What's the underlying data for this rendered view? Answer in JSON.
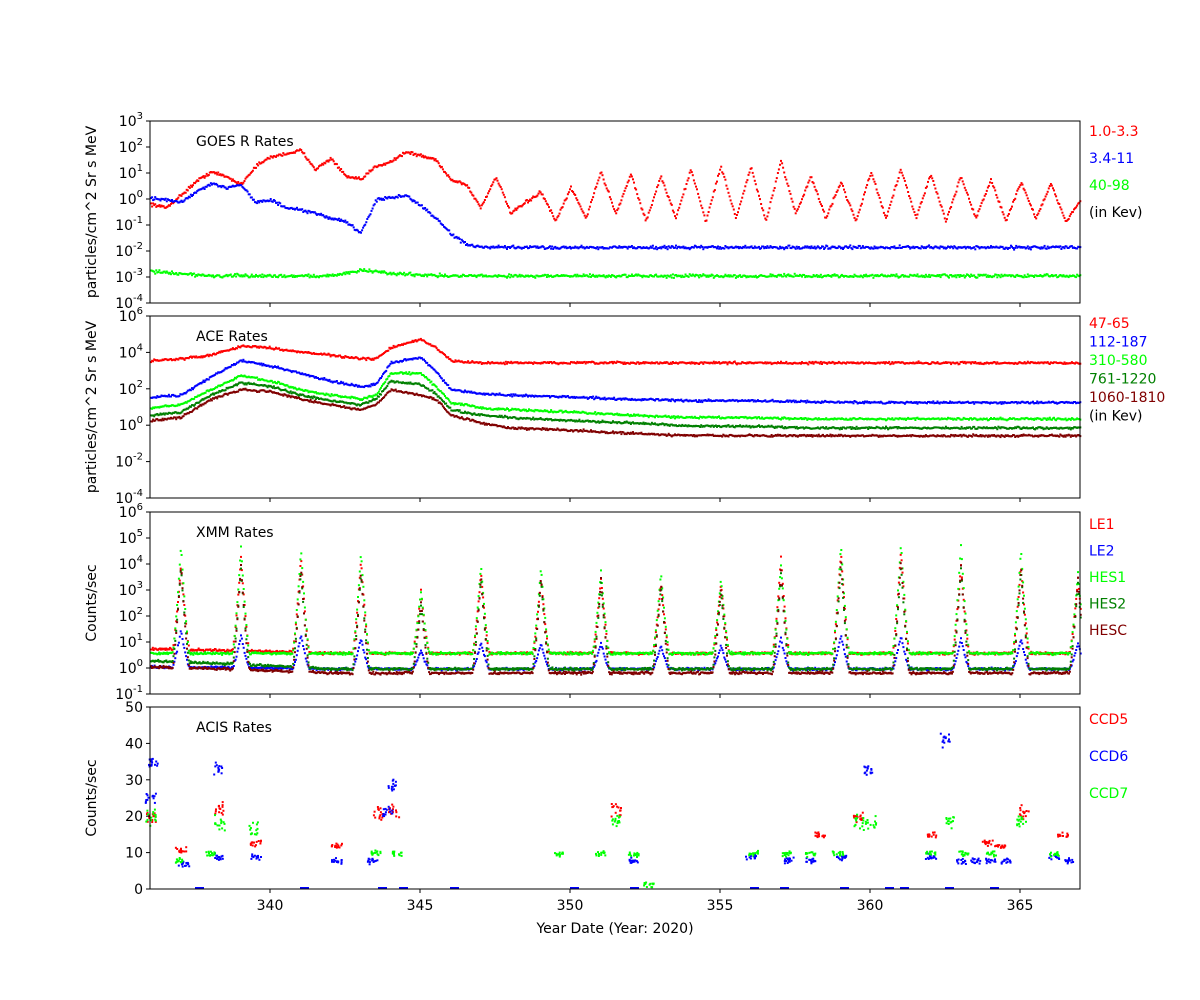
{
  "chart_data": [
    {
      "type": "scatter",
      "title": "GOES R Rates",
      "ylabel": "particles/cm^2 Sr s MeV",
      "yscale": "log",
      "ylim": [
        0.0001,
        1000
      ],
      "xlim": [
        336,
        367
      ],
      "y_tick_labels": [
        {
          "value": 0.0001,
          "base": "10",
          "exp": "-4"
        },
        {
          "value": 0.001,
          "base": "10",
          "exp": "-3"
        },
        {
          "value": 0.01,
          "base": "10",
          "exp": "-2"
        },
        {
          "value": 0.1,
          "base": "10",
          "exp": "-1"
        },
        {
          "value": 1,
          "base": "10",
          "exp": "0"
        },
        {
          "value": 10,
          "base": "10",
          "exp": "1"
        },
        {
          "value": 100,
          "base": "10",
          "exp": "2"
        },
        {
          "value": 1000,
          "base": "10",
          "exp": "3"
        }
      ],
      "legend": [
        "1.0-3.3",
        "3.4-11",
        "40-98",
        "(in Kev)"
      ],
      "series": [
        {
          "name": "1.0-3.3",
          "color": "#ff0000",
          "x": [
            336.0,
            336.5,
            337.0,
            337.5,
            338.0,
            338.5,
            339.0,
            339.5,
            340.0,
            340.5,
            341.0,
            341.5,
            342.0,
            342.5,
            343.0,
            343.5,
            344.0,
            344.5,
            345.0,
            345.5,
            346.0,
            346.5,
            347.0,
            347.5,
            348.0,
            348.5,
            349.0,
            349.5,
            350.0,
            350.5,
            351.0,
            351.5,
            352.0,
            352.5,
            353.0,
            353.5,
            354.0,
            354.5,
            355.0,
            355.5,
            356.0,
            356.5,
            357.0,
            357.5,
            358.0,
            358.5,
            359.0,
            359.5,
            360.0,
            360.5,
            361.0,
            361.5,
            362.0,
            362.5,
            363.0,
            363.5,
            364.0,
            364.5,
            365.0,
            365.5,
            366.0,
            366.5,
            367.0
          ],
          "y": [
            0.7,
            0.5,
            1.5,
            5,
            12,
            8,
            4,
            20,
            45,
            60,
            80,
            15,
            40,
            8,
            6,
            20,
            30,
            70,
            50,
            35,
            6,
            4,
            0.5,
            8,
            0.3,
            0.8,
            2,
            0.15,
            3,
            0.2,
            12,
            0.3,
            10,
            0.15,
            8,
            0.2,
            15,
            0.15,
            20,
            0.2,
            18,
            0.15,
            30,
            0.3,
            8,
            0.2,
            5,
            0.15,
            12,
            0.2,
            15,
            0.2,
            10,
            0.15,
            8,
            0.2,
            6,
            0.15,
            5,
            0.2,
            4,
            0.15,
            1
          ]
        },
        {
          "name": "3.4-11",
          "color": "#0000ff",
          "x": [
            336.0,
            336.5,
            337.0,
            337.5,
            338.0,
            338.5,
            339.0,
            339.5,
            340.0,
            340.5,
            341.0,
            341.5,
            342.0,
            342.5,
            343.0,
            343.5,
            344.0,
            344.5,
            345.0,
            345.5,
            346.0,
            346.5,
            347.0,
            348.0,
            350.0,
            352.0,
            354.0,
            356.0,
            358.0,
            360.0,
            362.0,
            364.0,
            366.0,
            367.0
          ],
          "y": [
            1.2,
            1,
            0.8,
            2,
            4,
            3,
            4,
            0.8,
            1,
            0.5,
            0.4,
            0.3,
            0.2,
            0.15,
            0.05,
            1,
            1.2,
            1.5,
            0.6,
            0.2,
            0.05,
            0.02,
            0.015,
            0.015,
            0.015,
            0.015,
            0.015,
            0.015,
            0.015,
            0.015,
            0.015,
            0.015,
            0.015,
            0.015
          ]
        },
        {
          "name": "40-98",
          "color": "#00ff00",
          "x": [
            336.0,
            338.0,
            340.0,
            342.0,
            343.0,
            344.0,
            346.0,
            348.0,
            350.0,
            352.0,
            354.0,
            356.0,
            358.0,
            360.0,
            362.0,
            364.0,
            366.0,
            367.0
          ],
          "y": [
            0.0018,
            0.0012,
            0.0012,
            0.0012,
            0.002,
            0.0015,
            0.0012,
            0.0012,
            0.0012,
            0.0012,
            0.0012,
            0.0012,
            0.0012,
            0.0012,
            0.0012,
            0.0012,
            0.0012,
            0.0012
          ]
        }
      ]
    },
    {
      "type": "scatter",
      "title": "ACE Rates",
      "ylabel": "particles/cm^2 Sr s MeV",
      "yscale": "log",
      "ylim": [
        0.0001,
        1000000
      ],
      "xlim": [
        336,
        367
      ],
      "y_tick_labels": [
        {
          "value": 0.0001,
          "base": "10",
          "exp": "-4"
        },
        {
          "value": 0.01,
          "base": "10",
          "exp": "-2"
        },
        {
          "value": 1,
          "base": "10",
          "exp": "0"
        },
        {
          "value": 100,
          "base": "10",
          "exp": "2"
        },
        {
          "value": 10000,
          "base": "10",
          "exp": "4"
        },
        {
          "value": 1000000,
          "base": "10",
          "exp": "6"
        }
      ],
      "legend": [
        "47-65",
        "112-187",
        "310-580",
        "761-1220",
        "1060-1810",
        "(in Kev)"
      ],
      "series": [
        {
          "name": "47-65",
          "color": "#ff0000",
          "x": [
            336.0,
            337.0,
            338.0,
            339.0,
            340.0,
            341.0,
            342.0,
            343.0,
            343.5,
            344.0,
            345.0,
            345.5,
            346.0,
            347.0,
            348.0,
            350.0,
            352.0,
            354.0,
            356.0,
            358.0,
            360.0,
            362.0,
            364.0,
            366.0,
            367.0
          ],
          "y": [
            4000,
            5000,
            8000,
            25000,
            20000,
            12000,
            8000,
            5000,
            5000,
            20000,
            60000,
            20000,
            4000,
            3000,
            3000,
            3000,
            3000,
            3000,
            3000,
            3000,
            3000,
            3000,
            3000,
            3000,
            3000
          ]
        },
        {
          "name": "112-187",
          "color": "#0000ff",
          "x": [
            336.0,
            337.0,
            338.0,
            339.0,
            340.0,
            341.0,
            342.0,
            343.0,
            343.5,
            344.0,
            345.0,
            345.5,
            346.0,
            347.0,
            348.0,
            350.0,
            352.0,
            354.0,
            356.0,
            358.0,
            360.0,
            362.0,
            364.0,
            366.0,
            367.0
          ],
          "y": [
            40,
            50,
            500,
            4000,
            2000,
            800,
            300,
            150,
            200,
            3000,
            6000,
            1000,
            100,
            60,
            50,
            40,
            30,
            25,
            25,
            22,
            20,
            20,
            20,
            20,
            20
          ]
        },
        {
          "name": "310-580",
          "color": "#00ff00",
          "x": [
            336.0,
            337.0,
            338.0,
            339.0,
            340.0,
            341.0,
            342.0,
            343.0,
            343.5,
            344.0,
            345.0,
            345.5,
            346.0,
            347.0,
            348.0,
            350.0,
            352.0,
            354.0,
            356.0,
            358.0,
            360.0,
            362.0,
            364.0,
            366.0,
            367.0
          ],
          "y": [
            10,
            15,
            100,
            600,
            300,
            100,
            50,
            30,
            50,
            800,
            800,
            150,
            20,
            10,
            8,
            6,
            4,
            3,
            3,
            2.5,
            2.5,
            2.5,
            2.5,
            2.5,
            2.5
          ]
        },
        {
          "name": "761-1220",
          "color": "#008000",
          "x": [
            336.0,
            337.0,
            338.0,
            339.0,
            340.0,
            341.0,
            342.0,
            343.0,
            343.5,
            344.0,
            345.0,
            345.5,
            346.0,
            347.0,
            348.0,
            350.0,
            352.0,
            354.0,
            356.0,
            358.0,
            360.0,
            362.0,
            364.0,
            366.0,
            367.0
          ],
          "y": [
            4,
            6,
            50,
            250,
            150,
            50,
            25,
            15,
            30,
            300,
            200,
            60,
            8,
            4,
            3,
            2,
            1.5,
            1,
            1,
            0.8,
            0.8,
            0.8,
            0.8,
            0.8,
            0.8
          ]
        },
        {
          "name": "1060-1810",
          "color": "#800000",
          "x": [
            336.0,
            337.0,
            338.0,
            339.0,
            340.0,
            341.0,
            342.0,
            343.0,
            343.5,
            344.0,
            345.0,
            345.5,
            346.0,
            347.0,
            348.0,
            350.0,
            352.0,
            354.0,
            356.0,
            358.0,
            360.0,
            362.0,
            364.0,
            366.0,
            367.0
          ],
          "y": [
            2,
            3,
            30,
            100,
            80,
            30,
            15,
            8,
            15,
            100,
            50,
            30,
            4,
            1.5,
            0.8,
            0.6,
            0.4,
            0.3,
            0.3,
            0.3,
            0.3,
            0.3,
            0.3,
            0.3,
            0.3
          ]
        }
      ]
    },
    {
      "type": "scatter",
      "title": "XMM Rates",
      "ylabel": "Counts/sec",
      "yscale": "log",
      "ylim": [
        0.1,
        1000000
      ],
      "xlim": [
        336,
        367
      ],
      "y_tick_labels": [
        {
          "value": 0.1,
          "base": "10",
          "exp": "-1"
        },
        {
          "value": 1,
          "base": "10",
          "exp": "0"
        },
        {
          "value": 10,
          "base": "10",
          "exp": "1"
        },
        {
          "value": 100,
          "base": "10",
          "exp": "2"
        },
        {
          "value": 1000,
          "base": "10",
          "exp": "3"
        },
        {
          "value": 10000,
          "base": "10",
          "exp": "4"
        },
        {
          "value": 100000,
          "base": "10",
          "exp": "5"
        },
        {
          "value": 1000000,
          "base": "10",
          "exp": "6"
        }
      ],
      "legend": [
        "LE1",
        "LE2",
        "HES1",
        "HES2",
        "HESC"
      ],
      "peak_days": [
        337.0,
        339.0,
        341.0,
        343.0,
        345.0,
        347.0,
        349.0,
        351.0,
        353.0,
        355.0,
        357.0,
        359.0,
        361.0,
        363.0,
        365.0,
        366.9
      ],
      "series": [
        {
          "name": "LE1",
          "color": "#ff0000",
          "baseline": [
            6,
            4
          ],
          "peak": [
            10000,
            20000,
            20000,
            15000,
            1000,
            5000,
            3000,
            3000,
            2000,
            2000,
            20000,
            30000,
            40000,
            10000,
            10000,
            3000
          ]
        },
        {
          "name": "LE2",
          "color": "#0000ff",
          "baseline": [
            1.2,
            1
          ],
          "peak": [
            30,
            20,
            20,
            15,
            5,
            10,
            10,
            10,
            8,
            8,
            15,
            20,
            20,
            15,
            15,
            10
          ]
        },
        {
          "name": "HES1",
          "color": "#00ff00",
          "baseline": [
            4,
            4
          ],
          "peak": [
            60000,
            50000,
            40000,
            30000,
            1000,
            10000,
            8000,
            6000,
            5000,
            3000,
            10000,
            60000,
            70000,
            60000,
            40000,
            5000
          ]
        },
        {
          "name": "HES2",
          "color": "#008000",
          "baseline": [
            2,
            1
          ],
          "peak": [
            8000,
            8000,
            6000,
            5000,
            300,
            3000,
            3000,
            2000,
            1500,
            1000,
            5000,
            10000,
            10000,
            8000,
            6000,
            2000
          ]
        },
        {
          "name": "HESC",
          "color": "#800000",
          "baseline": [
            1.2,
            0.7
          ],
          "peak": [
            10000,
            10000,
            8000,
            6000,
            400,
            4000,
            4000,
            3000,
            2000,
            1500,
            6000,
            20000,
            20000,
            10000,
            10000,
            3000
          ]
        }
      ]
    },
    {
      "type": "scatter",
      "title": "ACIS Rates",
      "ylabel": "Counts/sec",
      "xlabel": "Year Date (Year: 2020)",
      "yscale": "linear",
      "ylim": [
        0,
        50
      ],
      "xlim": [
        336,
        367
      ],
      "y_tick_labels": [
        {
          "value": 0,
          "text": "0"
        },
        {
          "value": 10,
          "text": "10"
        },
        {
          "value": 20,
          "text": "20"
        },
        {
          "value": 30,
          "text": "30"
        },
        {
          "value": 40,
          "text": "40"
        },
        {
          "value": 50,
          "text": "50"
        }
      ],
      "x_tick_labels": [
        {
          "value": 340,
          "text": "340"
        },
        {
          "value": 345,
          "text": "345"
        },
        {
          "value": 350,
          "text": "350"
        },
        {
          "value": 355,
          "text": "355"
        },
        {
          "value": 360,
          "text": "360"
        },
        {
          "value": 365,
          "text": "365"
        }
      ],
      "legend": [
        "CCD5",
        "CCD6",
        "CCD7"
      ],
      "series": [
        {
          "name": "CCD5",
          "color": "#ff0000",
          "x": [
            336.0,
            337.0,
            338.3,
            339.5,
            342.2,
            343.6,
            344.1,
            351.5,
            358.3,
            359.6,
            362.0,
            363.9,
            364.3,
            365.1,
            366.4
          ],
          "y": [
            20,
            11,
            22,
            13,
            12,
            21,
            22,
            22,
            15,
            20,
            15,
            13,
            12,
            21,
            15
          ]
        },
        {
          "name": "CCD6",
          "color": "#0000ff",
          "x": [
            336.0,
            336.1,
            337.1,
            338.2,
            338.3,
            339.5,
            342.2,
            343.4,
            343.9,
            344.0,
            352.1,
            356.0,
            357.3,
            358.0,
            359.0,
            359.9,
            362.0,
            362.5,
            363.0,
            363.5,
            364.0,
            364.5,
            366.1,
            366.6
          ],
          "y": [
            25,
            35,
            7,
            33,
            9,
            9,
            8,
            8,
            22,
            29,
            8,
            9,
            8,
            8,
            9,
            33,
            9,
            41,
            8,
            8,
            8,
            8,
            9,
            8
          ],
          "zero_dash_x": [
            337.5,
            341.0,
            343.6,
            344.3,
            346.0,
            350.0,
            352.0,
            356.0,
            357.0,
            359.0,
            360.5,
            361.0,
            362.5,
            364.0
          ]
        },
        {
          "name": "CCD7",
          "color": "#00ff00",
          "x": [
            336.0,
            337.0,
            338.0,
            338.3,
            339.4,
            343.5,
            344.2,
            349.6,
            351.0,
            351.5,
            352.1,
            352.6,
            356.1,
            357.2,
            358.0,
            358.9,
            359.6,
            360.0,
            362.0,
            362.6,
            363.1,
            364.0,
            365.0,
            366.1
          ],
          "y": [
            20,
            8,
            10,
            18,
            16,
            10,
            10,
            10,
            10,
            19,
            10,
            1.5,
            10,
            10,
            10,
            10,
            19,
            18,
            10,
            19,
            10,
            10,
            19,
            10
          ]
        }
      ]
    }
  ]
}
